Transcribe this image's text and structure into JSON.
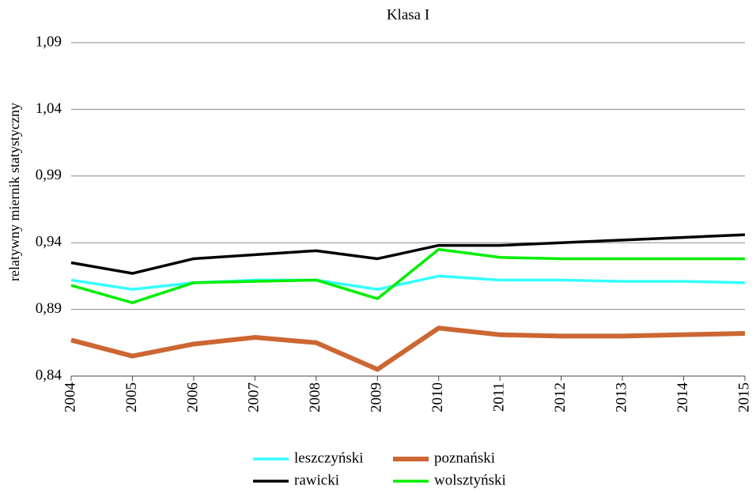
{
  "chart_data": {
    "type": "line",
    "title": "Klasa I",
    "y_label": "relatywny miernik statystyczny",
    "x": [
      2004,
      2005,
      2006,
      2007,
      2008,
      2009,
      2010,
      2011,
      2012,
      2013,
      2014,
      2015
    ],
    "xlim": [
      2004,
      2015
    ],
    "ylim": [
      0.84,
      1.09
    ],
    "yticks": [
      {
        "value": 0.84,
        "label": "0,84"
      },
      {
        "value": 0.89,
        "label": "0,89"
      },
      {
        "value": 0.94,
        "label": "0,94"
      },
      {
        "value": 0.99,
        "label": "0,99"
      },
      {
        "value": 1.04,
        "label": "1,04"
      },
      {
        "value": 1.09,
        "label": "1,09"
      }
    ],
    "grid": true,
    "series": [
      {
        "name": "leszczyński",
        "color": "#33ffff",
        "values": [
          0.912,
          0.905,
          0.91,
          0.912,
          0.912,
          0.905,
          0.915,
          0.912,
          0.912,
          0.911,
          0.911,
          0.91
        ]
      },
      {
        "name": "poznański",
        "color": "#cc6633",
        "values": [
          0.867,
          0.855,
          0.864,
          0.869,
          0.865,
          0.845,
          0.876,
          0.871,
          0.87,
          0.87,
          0.871,
          0.872
        ]
      },
      {
        "name": "rawicki",
        "color": "#000000",
        "values": [
          0.925,
          0.917,
          0.928,
          0.931,
          0.934,
          0.928,
          0.938,
          0.938,
          0.94,
          0.942,
          0.944,
          0.946
        ]
      },
      {
        "name": "wolsztyński",
        "color": "#00ee00",
        "values": [
          0.908,
          0.895,
          0.91,
          0.911,
          0.912,
          0.898,
          0.935,
          0.929,
          0.928,
          0.928,
          0.928,
          0.928
        ]
      }
    ]
  }
}
